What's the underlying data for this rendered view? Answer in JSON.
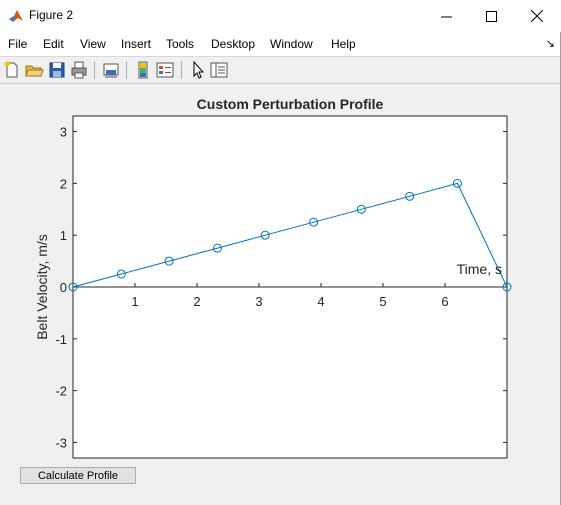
{
  "window": {
    "title": "Figure 2",
    "icon": "matlab-icon"
  },
  "menu": [
    "File",
    "Edit",
    "View",
    "Insert",
    "Tools",
    "Desktop",
    "Window",
    "Help"
  ],
  "menu_arrow": "↘",
  "toolbar_icons": [
    "new-figure-icon",
    "open-file-icon",
    "save-icon",
    "print-icon",
    "link-plot-icon",
    "insert-colorbar-icon",
    "insert-legend-icon",
    "edit-plot-icon",
    "property-inspector-icon"
  ],
  "button": {
    "label": "Calculate Profile"
  },
  "chart_data": {
    "type": "line",
    "title": "Custom Perturbation Profile",
    "xlabel": "Time, s",
    "ylabel": "Belt Velocity, m/s",
    "xlim": [
      0,
      7
    ],
    "ylim": [
      -3.3,
      3.3
    ],
    "xticks": [
      "1",
      "2",
      "3",
      "4",
      "5",
      "6"
    ],
    "yticks": [
      "3",
      "2",
      "1",
      "0",
      "-1",
      "-2",
      "-3"
    ],
    "series": [
      {
        "x": [
          0,
          0.78,
          1.55,
          2.33,
          3.1,
          3.88,
          4.65,
          5.43,
          6.2,
          7.0
        ],
        "y": [
          0,
          0.25,
          0.5,
          0.75,
          1.0,
          1.25,
          1.5,
          1.75,
          2.0,
          0
        ],
        "color": "#0072bd",
        "marker": "circle"
      }
    ],
    "grid": false,
    "axis_location": "origin"
  }
}
